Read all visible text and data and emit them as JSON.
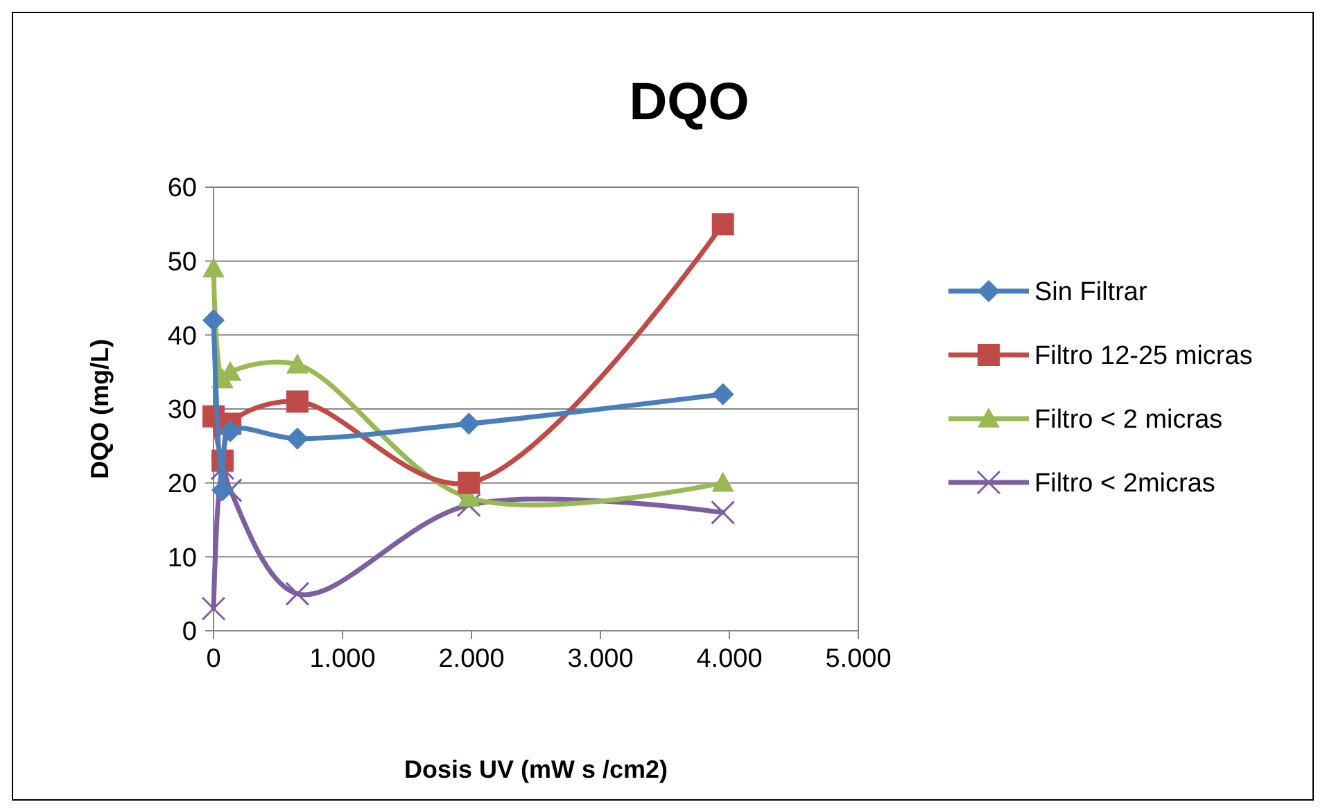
{
  "chart_data": {
    "type": "line",
    "title": "DQO",
    "xlabel": "Dosis UV (mW s /cm2)",
    "ylabel": "DQO (mg/L)",
    "xlim": [
      0,
      5000
    ],
    "xticks": [
      {
        "value": 0,
        "label": "0"
      },
      {
        "value": 1000,
        "label": "1.000"
      },
      {
        "value": 2000,
        "label": "2.000"
      },
      {
        "value": 3000,
        "label": "3.000"
      },
      {
        "value": 4000,
        "label": "4.000"
      },
      {
        "value": 5000,
        "label": "5.000"
      }
    ],
    "ylim": [
      0,
      60
    ],
    "yticks": [
      0,
      10,
      20,
      30,
      40,
      50,
      60
    ],
    "grid": "y",
    "legend": "right",
    "x": [
      0,
      70,
      130,
      650,
      1980,
      3950
    ],
    "series": [
      {
        "name": "Sin Filtrar",
        "color": "#4a7ebb",
        "marker": "diamond",
        "values": [
          42,
          19,
          27,
          26,
          28,
          32
        ]
      },
      {
        "name": "Filtro 12-25 micras",
        "color": "#be4b48",
        "marker": "square",
        "values": [
          29,
          23,
          28,
          31,
          20,
          55
        ]
      },
      {
        "name": "Filtro < 2 micras",
        "color": "#98b954",
        "marker": "triangle",
        "values": [
          49,
          34,
          35,
          36,
          18,
          20
        ]
      },
      {
        "name": "Filtro < 2micras",
        "color": "#7d5fa0",
        "marker": "cross",
        "values": [
          3,
          22,
          19,
          5,
          17,
          16
        ]
      }
    ]
  }
}
